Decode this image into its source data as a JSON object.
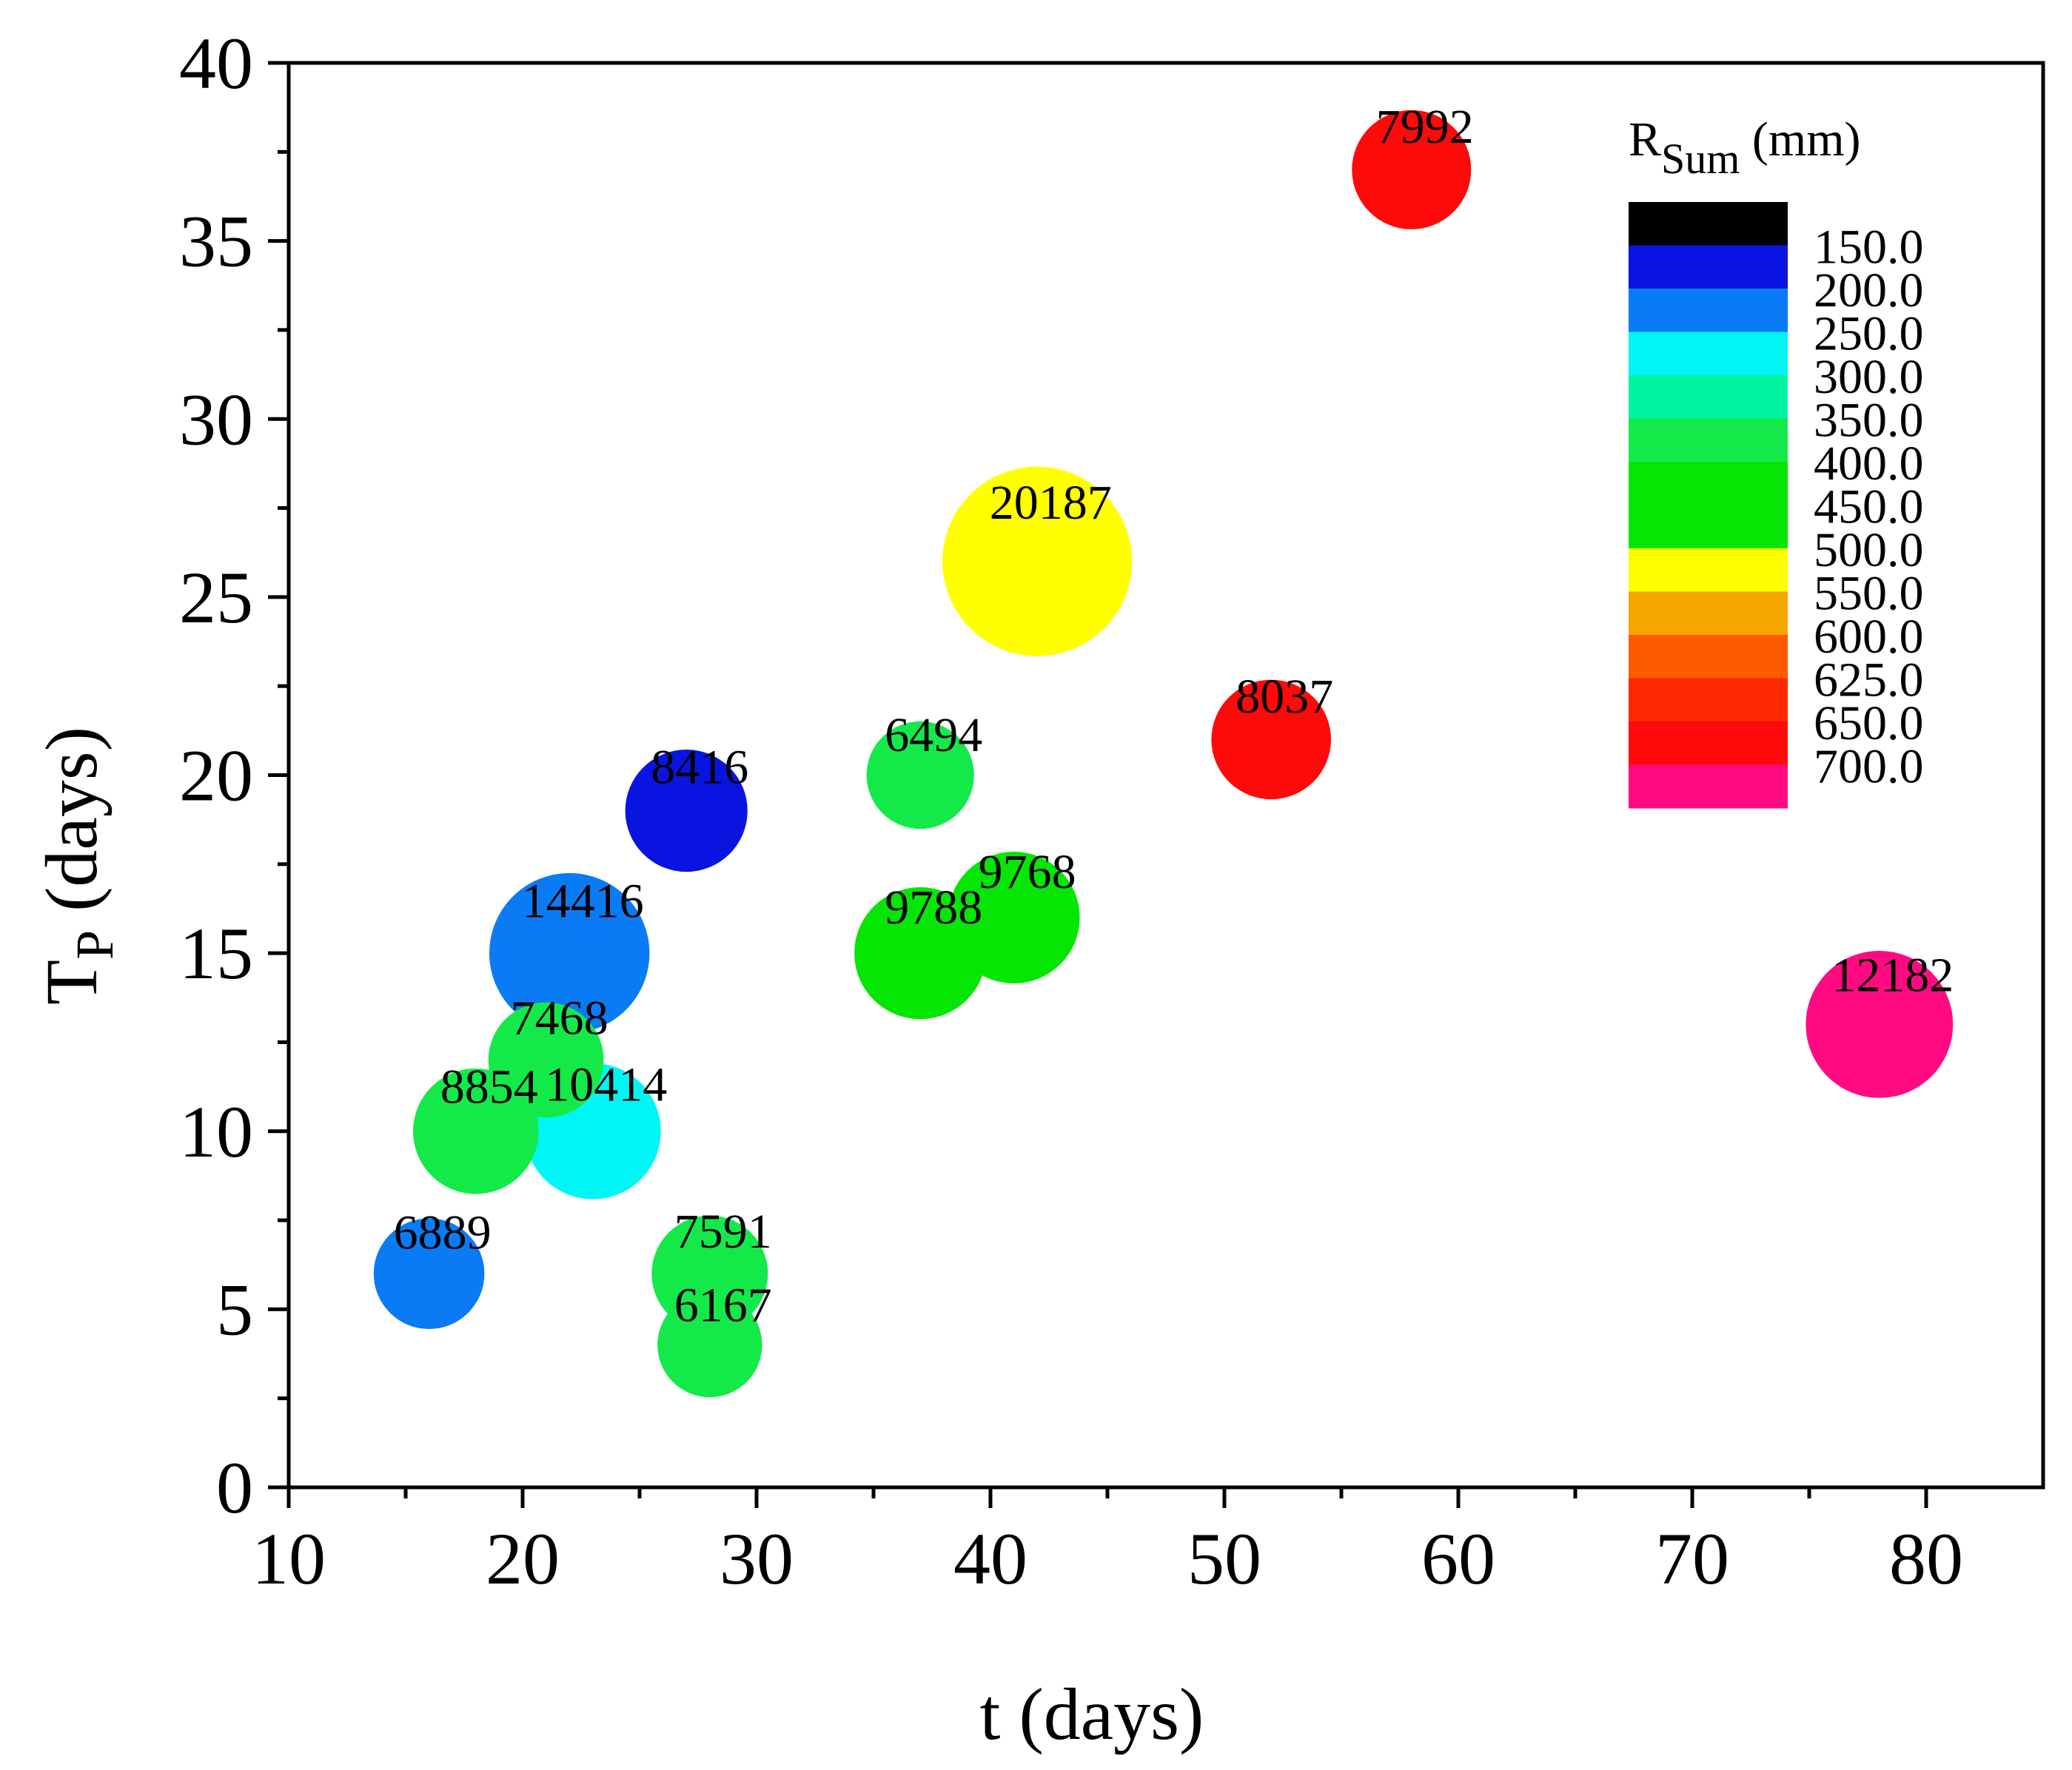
{
  "chart_data": {
    "type": "scatter",
    "subtype": "bubble",
    "title": "",
    "xlabel": "t (days)",
    "ylabel": {
      "main": "T",
      "sub": "P",
      "rest": " (days)"
    },
    "xlim": [
      10,
      85
    ],
    "ylim": [
      0,
      40
    ],
    "xticks": [
      10,
      20,
      30,
      40,
      50,
      60,
      70,
      80
    ],
    "yticks": [
      0,
      5,
      10,
      15,
      20,
      25,
      30,
      35,
      40
    ],
    "size_variable": "bubble label value",
    "points": [
      {
        "x": 16,
        "y": 6,
        "size": 6889,
        "label": "6889",
        "color": "#0A7BF5"
      },
      {
        "x": 18,
        "y": 10,
        "size": 8854,
        "label": "8854",
        "color": "#13EA4A"
      },
      {
        "x": 21,
        "y": 12,
        "size": 7468,
        "label": "7468",
        "color": "#13EA4A"
      },
      {
        "x": 22,
        "y": 15,
        "size": 14416,
        "label": "14416",
        "color": "#0A7BF5"
      },
      {
        "x": 23,
        "y": 10,
        "size": 10414,
        "label": "10414",
        "color": "#00F5F5"
      },
      {
        "x": 27,
        "y": 19,
        "size": 8416,
        "label": "8416",
        "color": "#0A14E0"
      },
      {
        "x": 28,
        "y": 6,
        "size": 7591,
        "label": "7591",
        "color": "#13EA4A"
      },
      {
        "x": 28,
        "y": 4,
        "size": 6167,
        "label": "6167",
        "color": "#13EA4A"
      },
      {
        "x": 37,
        "y": 20,
        "size": 6494,
        "label": "6494",
        "color": "#13EA4A"
      },
      {
        "x": 37,
        "y": 15,
        "size": 9788,
        "label": "9788",
        "color": "#05E605"
      },
      {
        "x": 41,
        "y": 16,
        "size": 9768,
        "label": "9768",
        "color": "#05E605"
      },
      {
        "x": 42,
        "y": 26,
        "size": 20187,
        "label": "20187",
        "color": "#FFFF00"
      },
      {
        "x": 52,
        "y": 21,
        "size": 8037,
        "label": "8037",
        "color": "#FF0A0A"
      },
      {
        "x": 58,
        "y": 37,
        "size": 7992,
        "label": "7992",
        "color": "#FF0A0A"
      },
      {
        "x": 78,
        "y": 13,
        "size": 12182,
        "label": "12182",
        "color": "#FF0A80"
      }
    ],
    "colorbar": {
      "title": {
        "main": "R",
        "sub": "Sum",
        "rest": " (mm)"
      },
      "colors": [
        "#000000",
        "#0A14E0",
        "#0A7BF5",
        "#00F5F5",
        "#00F5A0",
        "#13EA4A",
        "#05E605",
        "#05E605",
        "#FFFF00",
        "#F5A500",
        "#FF5A00",
        "#FF2800",
        "#FF0A0A",
        "#FF0A80"
      ],
      "labels": [
        "150.0",
        "200.0",
        "250.0",
        "300.0",
        "350.0",
        "400.0",
        "450.0",
        "500.0",
        "550.0",
        "600.0",
        "625.0",
        "650.0",
        "700.0"
      ]
    }
  }
}
